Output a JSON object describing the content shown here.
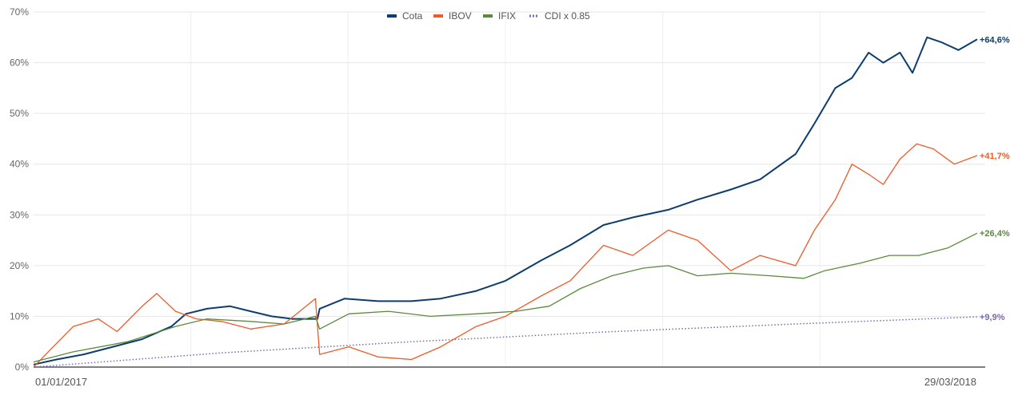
{
  "chart_data": {
    "type": "line",
    "title": "",
    "xlabel": "",
    "ylabel": "",
    "ylim": [
      0,
      70
    ],
    "y_ticks": [
      "0%",
      "10%",
      "20%",
      "30%",
      "40%",
      "50%",
      "60%",
      "70%"
    ],
    "y_tick_values": [
      0,
      10,
      20,
      30,
      40,
      50,
      60,
      70
    ],
    "x_start_label": "01/01/2017",
    "x_end_label": "29/03/2018",
    "x_range": [
      "2017-01-01",
      "2018-03-29"
    ],
    "grid": true,
    "legend_position": "top-center",
    "series": [
      {
        "name": "Cota",
        "color": "#0d3d6e",
        "dash": "solid",
        "end_label": "+64,6%",
        "points": [
          [
            "2017-01-01",
            0.5
          ],
          [
            "2017-01-12",
            1.5
          ],
          [
            "2017-01-25",
            2.5
          ],
          [
            "2017-02-08",
            4.0
          ],
          [
            "2017-02-22",
            5.5
          ],
          [
            "2017-03-08",
            8.0
          ],
          [
            "2017-03-15",
            10.5
          ],
          [
            "2017-03-25",
            11.5
          ],
          [
            "2017-04-05",
            12.0
          ],
          [
            "2017-04-15",
            11.0
          ],
          [
            "2017-04-25",
            10.0
          ],
          [
            "2017-05-05",
            9.5
          ],
          [
            "2017-05-17",
            9.5
          ],
          [
            "2017-05-18",
            11.5
          ],
          [
            "2017-05-30",
            13.5
          ],
          [
            "2017-06-15",
            13.0
          ],
          [
            "2017-07-01",
            13.0
          ],
          [
            "2017-07-15",
            13.5
          ],
          [
            "2017-08-01",
            15.0
          ],
          [
            "2017-08-15",
            17.0
          ],
          [
            "2017-09-01",
            21.0
          ],
          [
            "2017-09-15",
            24.0
          ],
          [
            "2017-10-01",
            28.0
          ],
          [
            "2017-10-15",
            29.5
          ],
          [
            "2017-11-01",
            31.0
          ],
          [
            "2017-11-15",
            33.0
          ],
          [
            "2017-12-01",
            35.0
          ],
          [
            "2017-12-15",
            37.0
          ],
          [
            "2018-01-01",
            42.0
          ],
          [
            "2018-01-10",
            48.0
          ],
          [
            "2018-01-20",
            55.0
          ],
          [
            "2018-01-28",
            57.0
          ],
          [
            "2018-02-05",
            62.0
          ],
          [
            "2018-02-12",
            60.0
          ],
          [
            "2018-02-20",
            62.0
          ],
          [
            "2018-02-26",
            58.0
          ],
          [
            "2018-03-05",
            65.0
          ],
          [
            "2018-03-12",
            64.0
          ],
          [
            "2018-03-20",
            62.5
          ],
          [
            "2018-03-29",
            64.6
          ]
        ]
      },
      {
        "name": "IBOV",
        "color": "#f05a28",
        "dash": "solid",
        "end_label": "+41,7%",
        "points": [
          [
            "2017-01-01",
            0.0
          ],
          [
            "2017-01-08",
            3.0
          ],
          [
            "2017-01-20",
            8.0
          ],
          [
            "2017-02-01",
            9.5
          ],
          [
            "2017-02-10",
            7.0
          ],
          [
            "2017-02-22",
            12.0
          ],
          [
            "2017-03-01",
            14.5
          ],
          [
            "2017-03-10",
            11.0
          ],
          [
            "2017-03-20",
            9.5
          ],
          [
            "2017-04-01",
            9.0
          ],
          [
            "2017-04-15",
            7.5
          ],
          [
            "2017-05-01",
            8.5
          ],
          [
            "2017-05-16",
            13.5
          ],
          [
            "2017-05-18",
            2.5
          ],
          [
            "2017-06-01",
            4.0
          ],
          [
            "2017-06-15",
            2.0
          ],
          [
            "2017-07-01",
            1.5
          ],
          [
            "2017-07-15",
            4.0
          ],
          [
            "2017-08-01",
            8.0
          ],
          [
            "2017-08-15",
            10.0
          ],
          [
            "2017-09-01",
            14.0
          ],
          [
            "2017-09-15",
            17.0
          ],
          [
            "2017-10-01",
            24.0
          ],
          [
            "2017-10-15",
            22.0
          ],
          [
            "2017-11-01",
            27.0
          ],
          [
            "2017-11-15",
            25.0
          ],
          [
            "2017-12-01",
            19.0
          ],
          [
            "2017-12-15",
            22.0
          ],
          [
            "2018-01-01",
            20.0
          ],
          [
            "2018-01-10",
            27.0
          ],
          [
            "2018-01-20",
            33.0
          ],
          [
            "2018-01-28",
            40.0
          ],
          [
            "2018-02-05",
            38.0
          ],
          [
            "2018-02-12",
            36.0
          ],
          [
            "2018-02-20",
            41.0
          ],
          [
            "2018-02-28",
            44.0
          ],
          [
            "2018-03-08",
            43.0
          ],
          [
            "2018-03-18",
            40.0
          ],
          [
            "2018-03-29",
            41.7
          ]
        ]
      },
      {
        "name": "IFIX",
        "color": "#5a8a3c",
        "dash": "solid",
        "end_label": "+26,4%",
        "points": [
          [
            "2017-01-01",
            1.0
          ],
          [
            "2017-01-20",
            3.0
          ],
          [
            "2017-02-15",
            5.0
          ],
          [
            "2017-03-10",
            8.0
          ],
          [
            "2017-03-25",
            9.5
          ],
          [
            "2017-04-15",
            9.0
          ],
          [
            "2017-05-01",
            8.5
          ],
          [
            "2017-05-16",
            10.0
          ],
          [
            "2017-05-18",
            7.5
          ],
          [
            "2017-06-01",
            10.5
          ],
          [
            "2017-06-20",
            11.0
          ],
          [
            "2017-07-10",
            10.0
          ],
          [
            "2017-08-01",
            10.5
          ],
          [
            "2017-08-20",
            11.0
          ],
          [
            "2017-09-05",
            12.0
          ],
          [
            "2017-09-20",
            15.5
          ],
          [
            "2017-10-05",
            18.0
          ],
          [
            "2017-10-20",
            19.5
          ],
          [
            "2017-11-01",
            20.0
          ],
          [
            "2017-11-15",
            18.0
          ],
          [
            "2017-12-01",
            18.5
          ],
          [
            "2017-12-20",
            18.0
          ],
          [
            "2018-01-05",
            17.5
          ],
          [
            "2018-01-15",
            19.0
          ],
          [
            "2018-02-01",
            20.5
          ],
          [
            "2018-02-15",
            22.0
          ],
          [
            "2018-03-01",
            22.0
          ],
          [
            "2018-03-15",
            23.5
          ],
          [
            "2018-03-29",
            26.4
          ]
        ]
      },
      {
        "name": "CDI x 0.85",
        "color": "#7b68b5",
        "dash": "dotted",
        "end_label": "+9,9%",
        "points": [
          [
            "2017-01-01",
            0.0
          ],
          [
            "2017-04-01",
            2.8
          ],
          [
            "2017-07-01",
            5.0
          ],
          [
            "2017-10-01",
            6.9
          ],
          [
            "2018-01-01",
            8.5
          ],
          [
            "2018-03-29",
            9.9
          ]
        ]
      }
    ]
  }
}
